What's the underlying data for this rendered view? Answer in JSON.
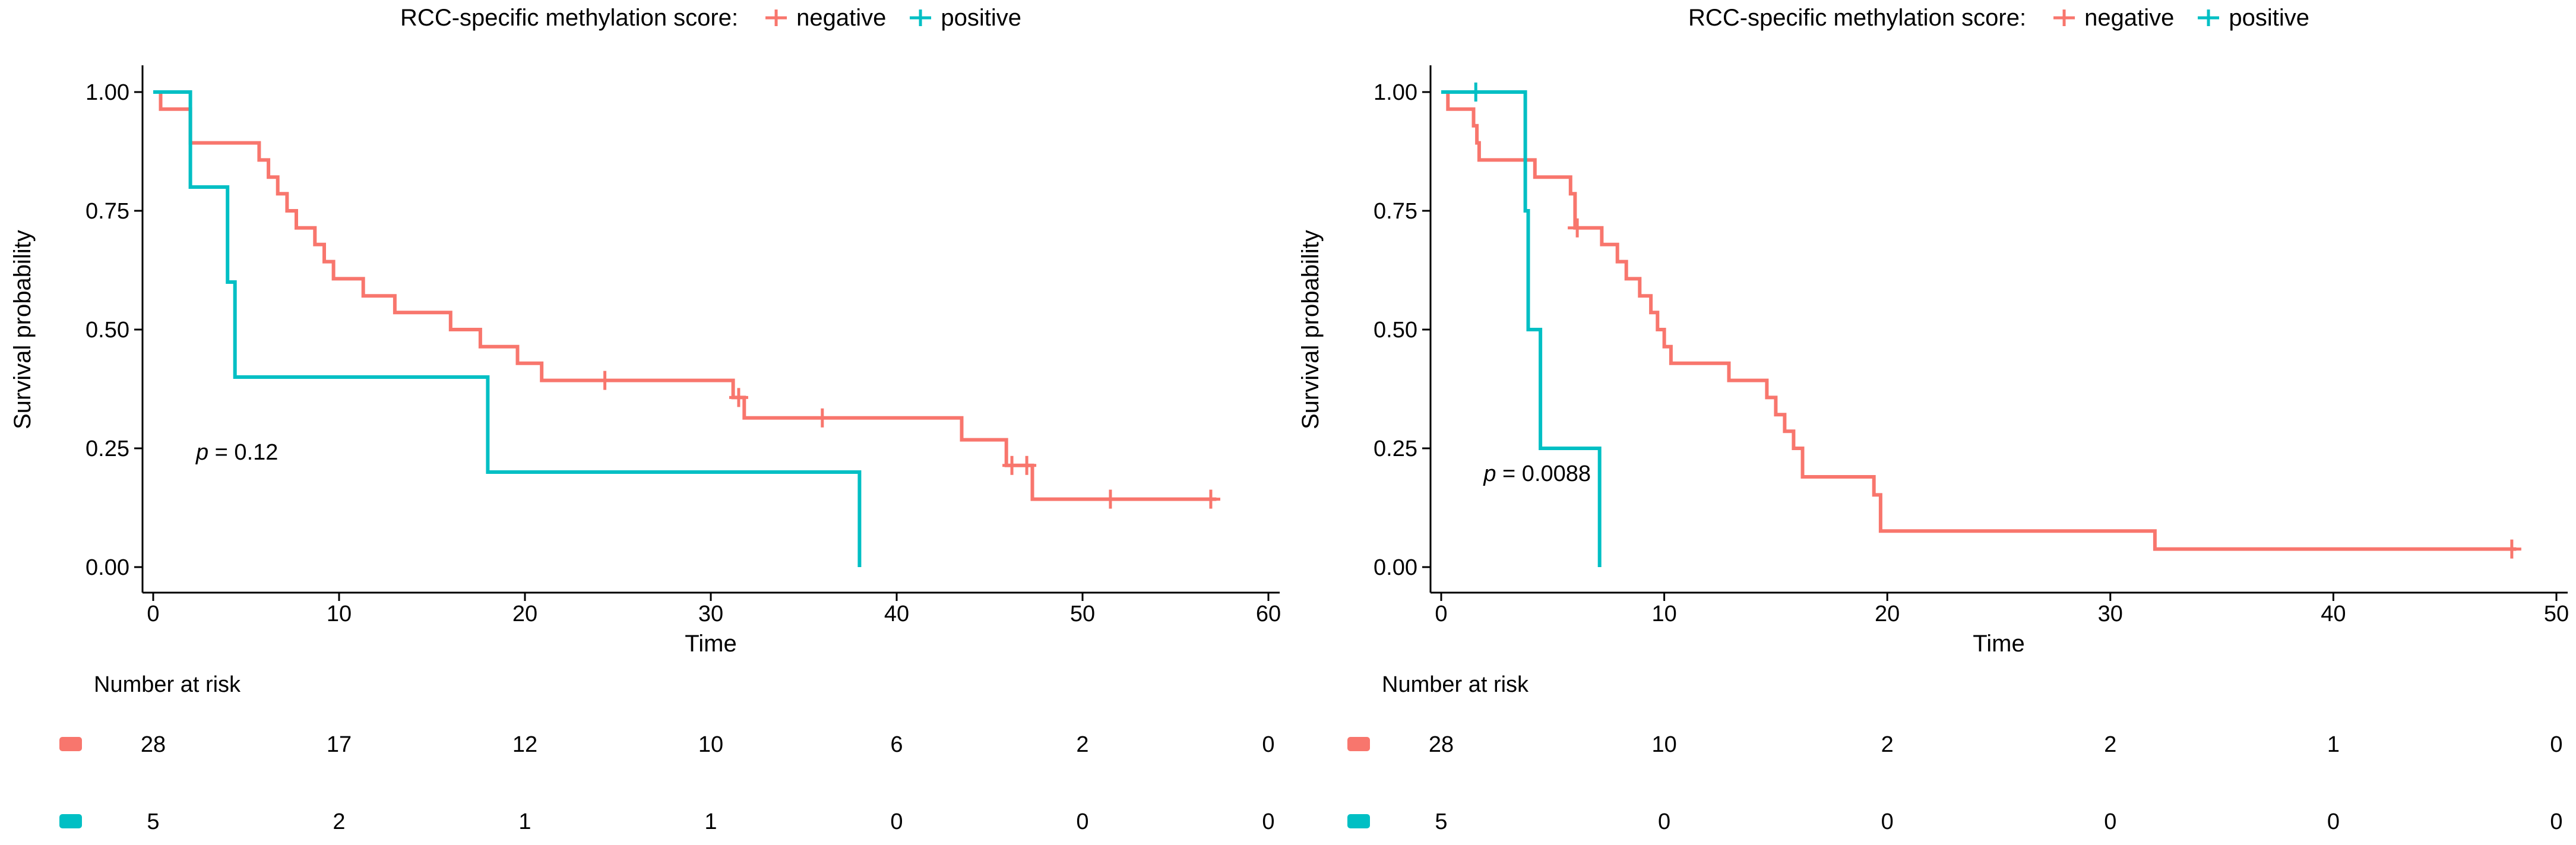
{
  "figure_type": "kaplan-meier-survival-figure",
  "chart_data": [
    {
      "type": "line",
      "subtype": "kaplan-meier-step",
      "title": "RCC-specific methylation score:",
      "xlabel": "Time",
      "ylabel": "Survival probability",
      "xlim": [
        0,
        60
      ],
      "ylim": [
        0,
        1
      ],
      "x_ticks": [
        0,
        10,
        20,
        30,
        40,
        50,
        60
      ],
      "y_ticks": [
        0,
        0.25,
        0.5,
        0.75,
        1
      ],
      "y_tick_labels": [
        "0.00",
        "0.25",
        "0.50",
        "0.75",
        "1.00"
      ],
      "grid": false,
      "legend": {
        "position": "top",
        "entries": [
          {
            "label": "negative",
            "color": "#F8766D"
          },
          {
            "label": "positive",
            "color": "#00BFC4"
          }
        ]
      },
      "p_value_label": {
        "symbol": "p",
        "rest": " = 0.12",
        "x": 2.3,
        "y": 0.235
      },
      "series": [
        {
          "name": "negative",
          "color": "#F8766D",
          "steps": [
            [
              0,
              1.0
            ],
            [
              0.4,
              0.964
            ],
            [
              2,
              0.893
            ],
            [
              5.7,
              0.857
            ],
            [
              6.2,
              0.821
            ],
            [
              6.7,
              0.786
            ],
            [
              7.2,
              0.75
            ],
            [
              7.7,
              0.714
            ],
            [
              8.7,
              0.679
            ],
            [
              9.2,
              0.643
            ],
            [
              9.7,
              0.607
            ],
            [
              11.3,
              0.571
            ],
            [
              13,
              0.536
            ],
            [
              16,
              0.5
            ],
            [
              17.6,
              0.464
            ],
            [
              19.6,
              0.429
            ],
            [
              20.9,
              0.393
            ],
            [
              31.2,
              0.357
            ],
            [
              31.8,
              0.314
            ],
            [
              43.5,
              0.268
            ],
            [
              45.9,
              0.214
            ],
            [
              47.3,
              0.143
            ],
            [
              57.2,
              0.143
            ]
          ],
          "censors": [
            [
              24.3,
              0.393
            ],
            [
              31.5,
              0.357
            ],
            [
              36,
              0.314
            ],
            [
              46.2,
              0.214
            ],
            [
              47.0,
              0.214
            ],
            [
              51.5,
              0.143
            ],
            [
              56.9,
              0.143
            ]
          ]
        },
        {
          "name": "positive",
          "color": "#00BFC4",
          "steps": [
            [
              0,
              1.0
            ],
            [
              2,
              0.8
            ],
            [
              4,
              0.6
            ],
            [
              4.4,
              0.4
            ],
            [
              18,
              0.2
            ],
            [
              38,
              0.0
            ]
          ],
          "censors": []
        }
      ],
      "risk_table": {
        "header": "Number at risk",
        "times": [
          0,
          10,
          20,
          30,
          40,
          50,
          60
        ],
        "rows": [
          {
            "name": "negative",
            "color": "#F8766D",
            "counts": [
              28,
              17,
              12,
              10,
              6,
              2,
              0
            ]
          },
          {
            "name": "positive",
            "color": "#00BFC4",
            "counts": [
              5,
              2,
              1,
              1,
              0,
              0,
              0
            ]
          }
        ]
      }
    },
    {
      "type": "line",
      "subtype": "kaplan-meier-step",
      "title": "RCC-specific methylation score:",
      "xlabel": "Time",
      "ylabel": "Survival probability",
      "xlim": [
        0,
        50
      ],
      "ylim": [
        0,
        1
      ],
      "x_ticks": [
        0,
        10,
        20,
        30,
        40,
        50
      ],
      "y_ticks": [
        0,
        0.25,
        0.5,
        0.75,
        1
      ],
      "y_tick_labels": [
        "0.00",
        "0.25",
        "0.50",
        "0.75",
        "1.00"
      ],
      "grid": false,
      "legend": {
        "position": "top",
        "entries": [
          {
            "label": "negative",
            "color": "#F8766D"
          },
          {
            "label": "positive",
            "color": "#00BFC4"
          }
        ]
      },
      "p_value_label": {
        "symbol": "p",
        "rest": " = 0.0088",
        "x": 1.9,
        "y": 0.19
      },
      "series": [
        {
          "name": "negative",
          "color": "#F8766D",
          "steps": [
            [
              0,
              1.0
            ],
            [
              0.3,
              0.964
            ],
            [
              1.45,
              0.929
            ],
            [
              1.6,
              0.893
            ],
            [
              1.7,
              0.857
            ],
            [
              4.2,
              0.821
            ],
            [
              5.8,
              0.786
            ],
            [
              6.0,
              0.714
            ],
            [
              7.2,
              0.679
            ],
            [
              7.9,
              0.643
            ],
            [
              8.3,
              0.607
            ],
            [
              8.9,
              0.571
            ],
            [
              9.4,
              0.536
            ],
            [
              9.7,
              0.5
            ],
            [
              10.0,
              0.464
            ],
            [
              10.3,
              0.429
            ],
            [
              12.9,
              0.393
            ],
            [
              14.6,
              0.357
            ],
            [
              15.0,
              0.321
            ],
            [
              15.4,
              0.286
            ],
            [
              15.8,
              0.25
            ],
            [
              16.2,
              0.19
            ],
            [
              19.4,
              0.152
            ],
            [
              19.7,
              0.076
            ],
            [
              32,
              0.038
            ],
            [
              48.2,
              0.038
            ]
          ],
          "censors": [
            [
              6.1,
              0.714
            ],
            [
              48,
              0.038
            ]
          ]
        },
        {
          "name": "positive",
          "color": "#00BFC4",
          "steps": [
            [
              0,
              1.0
            ],
            [
              3.77,
              0.75
            ],
            [
              3.9,
              0.5
            ],
            [
              4.45,
              0.25
            ],
            [
              7.1,
              0.0
            ]
          ],
          "censors": [
            [
              1.55,
              1.0
            ]
          ]
        }
      ],
      "risk_table": {
        "header": "Number at risk",
        "times": [
          0,
          10,
          20,
          30,
          40,
          50
        ],
        "rows": [
          {
            "name": "negative",
            "color": "#F8766D",
            "counts": [
              28,
              10,
              2,
              2,
              1,
              0
            ]
          },
          {
            "name": "positive",
            "color": "#00BFC4",
            "counts": [
              5,
              0,
              0,
              0,
              0,
              0
            ]
          }
        ]
      }
    }
  ]
}
